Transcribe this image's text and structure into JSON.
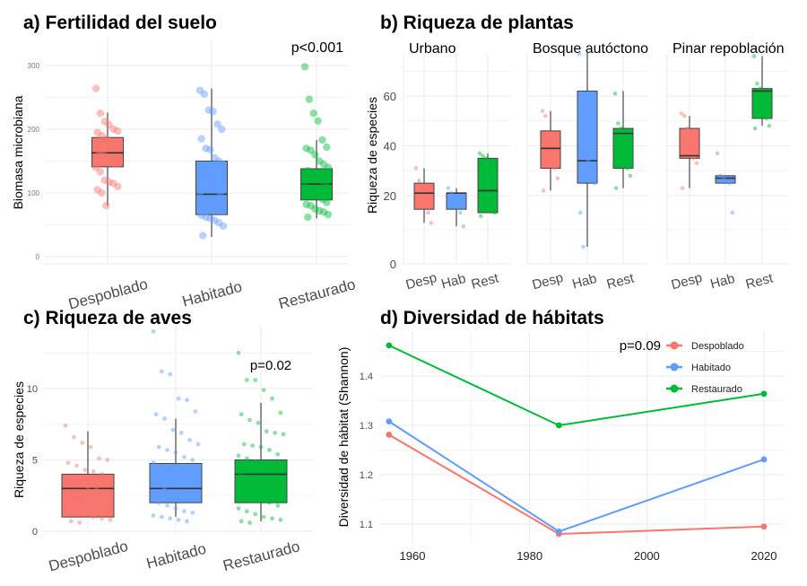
{
  "colors": {
    "Despoblado": "#F8766D",
    "Habitado": "#619CFF",
    "Restaurado": "#00BA38"
  },
  "chart_data": [
    {
      "type": "box",
      "title": "a) Fertilidad del suelo",
      "ylabel": "Biomasa microbiana",
      "yticks": [
        0,
        100,
        200,
        300
      ],
      "annotation": "p<0.001",
      "categories": [
        "Despoblado",
        "Habitado",
        "Restaurado"
      ],
      "boxes": [
        {
          "q1": 141,
          "median": 163,
          "q3": 187,
          "lo": 80,
          "hi": 226,
          "points": [
            264,
            225,
            212,
            207,
            200,
            197,
            195,
            190,
            185,
            180,
            175,
            170,
            165,
            160,
            155,
            150,
            145,
            140,
            133,
            120,
            117,
            115,
            110,
            105,
            100,
            80
          ]
        },
        {
          "q1": 66,
          "median": 98,
          "q3": 150,
          "lo": 31,
          "hi": 264,
          "points": [
            261,
            255,
            230,
            228,
            208,
            200,
            185,
            170,
            168,
            155,
            150,
            145,
            135,
            125,
            115,
            105,
            100,
            95,
            90,
            85,
            80,
            75,
            70,
            65,
            62,
            60,
            57,
            53,
            48,
            33
          ]
        },
        {
          "q1": 89,
          "median": 114,
          "q3": 138,
          "lo": 60,
          "hi": 183,
          "points": [
            298,
            247,
            225,
            213,
            183,
            172,
            170,
            167,
            160,
            150,
            145,
            140,
            135,
            130,
            125,
            120,
            115,
            110,
            105,
            100,
            95,
            90,
            85,
            82,
            80,
            75,
            72,
            70,
            66,
            62
          ]
        }
      ]
    },
    {
      "type": "box",
      "title": "b) Riqueza de plantas",
      "ylabel": "Riqueza de especies",
      "yticks": [
        0,
        20,
        40,
        60
      ],
      "facets": [
        {
          "title": "Urbano",
          "categories": [
            "Desp",
            "Hab",
            "Rest"
          ],
          "boxes": [
            {
              "q1": 16,
              "median": 21,
              "q3": 25,
              "lo": 12,
              "hi": 31,
              "points": [
                31,
                26,
                22,
                17,
                15,
                12
              ]
            },
            {
              "q1": 16,
              "median": 21,
              "q3": 21,
              "lo": 11,
              "hi": 23,
              "points": [
                23,
                21,
                20,
                17,
                15,
                11
              ]
            },
            {
              "q1": 15,
              "median": 22,
              "q3": 35,
              "lo": 15,
              "hi": 37,
              "points": [
                37,
                36,
                35,
                25,
                18,
                15,
                14
              ]
            }
          ]
        },
        {
          "title": "Bosque autóctono",
          "categories": [
            "Desp",
            "Hab",
            "Rest"
          ],
          "boxes": [
            {
              "q1": 31,
              "median": 39,
              "q3": 46,
              "lo": 22,
              "hi": 54,
              "points": [
                54,
                52,
                43,
                35,
                31,
                27,
                22
              ]
            },
            {
              "q1": 25,
              "median": 34,
              "q3": 62,
              "lo": 5,
              "hi": 78,
              "points": [
                77,
                61,
                36,
                34,
                30,
                25,
                15,
                5
              ]
            },
            {
              "q1": 31,
              "median": 45,
              "q3": 47,
              "lo": 23,
              "hi": 62,
              "points": [
                61,
                49,
                47,
                43,
                31,
                28,
                23
              ]
            }
          ]
        },
        {
          "title": "Pinar repoblación",
          "categories": [
            "Desp",
            "Hab",
            "Rest"
          ],
          "boxes": [
            {
              "q1": 35,
              "median": 36,
              "q3": 47,
              "lo": 23,
              "hi": 52,
              "points": [
                53,
                52,
                47,
                39,
                35,
                33,
                23
              ]
            },
            {
              "q1": 25,
              "median": 27,
              "q3": 28,
              "lo": 25,
              "hi": 28,
              "points": [
                37,
                28,
                27,
                26,
                25,
                15
              ]
            },
            {
              "q1": 51,
              "median": 62,
              "q3": 63,
              "lo": 48,
              "hi": 76,
              "points": [
                76,
                65,
                63,
                60,
                51,
                48,
                47
              ]
            }
          ]
        }
      ]
    },
    {
      "type": "box",
      "title": "c) Riqueza de aves",
      "ylabel": "Riqueza de especies",
      "yticks": [
        0,
        5,
        10
      ],
      "annotation": "p=0.02",
      "categories": [
        "Despoblado",
        "Habitado",
        "Restaurado"
      ],
      "boxes": [
        {
          "q1": 1,
          "median": 3,
          "q3": 4,
          "lo": 1,
          "hi": 7,
          "points": [
            7.4,
            6.6,
            6.2,
            5.9,
            5.1,
            5,
            4.8,
            4.6,
            4.3,
            4.2,
            4,
            3.8,
            3.5,
            3.3,
            3.1,
            3,
            2.8,
            2.6,
            2.4,
            2.2,
            2,
            1.9,
            1.7,
            1.5,
            1.3,
            1.2,
            1,
            0.9,
            0.8,
            0.7,
            0.6
          ]
        },
        {
          "q1": 2,
          "median": 3,
          "q3": 4.75,
          "lo": 1,
          "hi": 7.9,
          "points": [
            14,
            11.2,
            11,
            9.3,
            9.2,
            8.4,
            8.2,
            7.9,
            7.1,
            6.9,
            6.4,
            6.1,
            5.9,
            5.7,
            5.5,
            5.2,
            5,
            4.8,
            4.5,
            4.3,
            4,
            3.8,
            3.5,
            3.3,
            3,
            2.8,
            2.6,
            2.4,
            2.2,
            2,
            1.8,
            1.6,
            1.4,
            1.3,
            1.1,
            1,
            0.9,
            0.8,
            0.7
          ]
        },
        {
          "q1": 2,
          "median": 4,
          "q3": 5,
          "lo": 0.7,
          "hi": 9,
          "points": [
            12.5,
            10.6,
            10.6,
            9.9,
            9.3,
            8.3,
            8.2,
            7.8,
            7.6,
            7,
            6.9,
            6.8,
            6.1,
            6,
            5.9,
            5.7,
            5.4,
            5.3,
            5.1,
            4.9,
            4.6,
            4.4,
            4.2,
            4,
            3.8,
            3.6,
            3.3,
            3.1,
            2.9,
            2.6,
            2.4,
            2.2,
            2,
            1.8,
            1.6,
            1.4,
            1.2,
            1,
            0.9,
            0.8,
            0.7,
            0.6
          ]
        }
      ]
    },
    {
      "type": "line",
      "title": "d) Diversidad de hábitats",
      "ylabel": "Diversidad de hábitat (Shannon)",
      "xticks": [
        1960,
        1980,
        2000,
        2020
      ],
      "yticks": [
        1.1,
        1.2,
        1.3,
        1.4
      ],
      "annotation": "p=0.09",
      "legend": "top-right",
      "x": [
        1956,
        1985,
        2020
      ],
      "series": [
        {
          "name": "Despoblado",
          "values": [
            1.281,
            1.08,
            1.095
          ]
        },
        {
          "name": "Habitado",
          "values": [
            1.308,
            1.085,
            1.231
          ]
        },
        {
          "name": "Restaurado",
          "values": [
            1.462,
            1.3,
            1.364
          ]
        }
      ]
    }
  ]
}
